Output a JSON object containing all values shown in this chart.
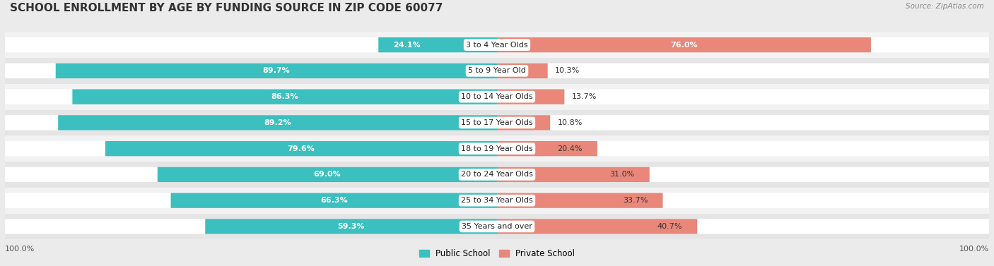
{
  "title": "SCHOOL ENROLLMENT BY AGE BY FUNDING SOURCE IN ZIP CODE 60077",
  "source": "Source: ZipAtlas.com",
  "categories": [
    "3 to 4 Year Olds",
    "5 to 9 Year Old",
    "10 to 14 Year Olds",
    "15 to 17 Year Olds",
    "18 to 19 Year Olds",
    "20 to 24 Year Olds",
    "25 to 34 Year Olds",
    "35 Years and over"
  ],
  "public_values": [
    24.1,
    89.7,
    86.3,
    89.2,
    79.6,
    69.0,
    66.3,
    59.3
  ],
  "private_values": [
    76.0,
    10.3,
    13.7,
    10.8,
    20.4,
    31.0,
    33.7,
    40.7
  ],
  "public_color": "#3BBFBF",
  "private_color": "#E8877A",
  "public_label": "Public School",
  "private_label": "Private School",
  "background_color": "#EBEBEB",
  "row_colors": [
    "#F2F2F2",
    "#E5E5E5"
  ],
  "bar_bg_color": "#FFFFFF",
  "title_fontsize": 11,
  "bar_label_fontsize": 8,
  "category_fontsize": 8,
  "axis_label_fontsize": 8
}
